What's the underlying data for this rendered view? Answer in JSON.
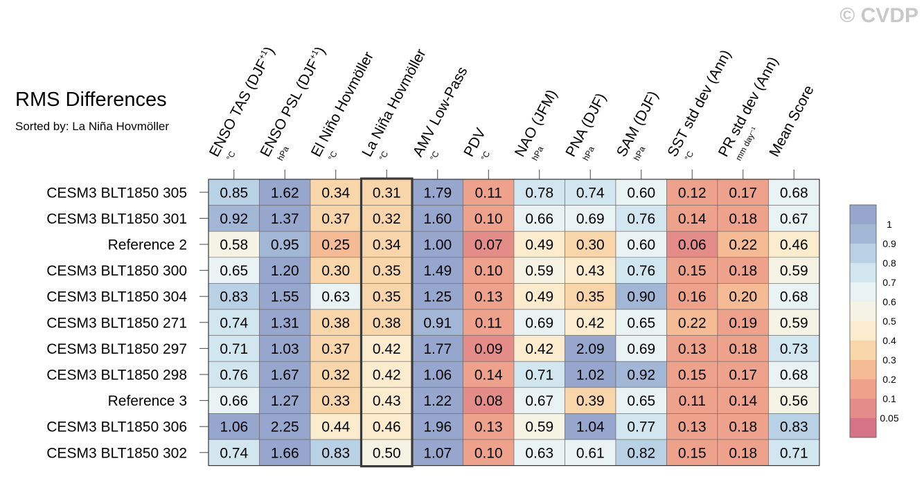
{
  "title": "RMS Differences",
  "subtitle": "Sorted by: La Niña Hovmöller",
  "watermark": "© CVDP",
  "chart_data": {
    "type": "heatmap",
    "title": "RMS Differences",
    "subtitle": "Sorted by: La Niña Hovmöller",
    "columns": [
      {
        "label": "ENSO TAS (DJF",
        "sup": "+1",
        "tail": ")",
        "unit": "°C"
      },
      {
        "label": "ENSO PSL (DJF",
        "sup": "+1",
        "tail": ")",
        "unit": "hPa"
      },
      {
        "label": "El Niño Hovmöller",
        "sup": "",
        "tail": "",
        "unit": "°C"
      },
      {
        "label": "La Niña Hovmöller",
        "sup": "",
        "tail": "",
        "unit": "°C"
      },
      {
        "label": "AMV Low-Pass",
        "sup": "",
        "tail": "",
        "unit": "°C"
      },
      {
        "label": "PDV",
        "sup": "",
        "tail": "",
        "unit": "°C"
      },
      {
        "label": "NAO (JFM)",
        "sup": "",
        "tail": "",
        "unit": "hPa"
      },
      {
        "label": "PNA (DJF)",
        "sup": "",
        "tail": "",
        "unit": "hPa"
      },
      {
        "label": "SAM (DJF)",
        "sup": "",
        "tail": "",
        "unit": "hPa"
      },
      {
        "label": "SST std dev (Ann)",
        "sup": "",
        "tail": "",
        "unit": "°C"
      },
      {
        "label": "PR std dev (Ann)",
        "sup": "",
        "tail": "",
        "unit": "mm day⁻¹"
      },
      {
        "label": "Mean Score",
        "sup": "",
        "tail": "",
        "unit": ""
      }
    ],
    "rows": [
      "CESM3 BLT1850 305",
      "CESM3 BLT1850 301",
      "Reference 2",
      "CESM3 BLT1850 300",
      "CESM3 BLT1850 304",
      "CESM3 BLT1850 271",
      "CESM3 BLT1850 297",
      "CESM3 BLT1850 298",
      "Reference 3",
      "CESM3 BLT1850 306",
      "CESM3 BLT1850 302"
    ],
    "values": [
      [
        "0.85",
        "1.62",
        "0.34",
        "0.31",
        "1.79",
        "0.11",
        "0.78",
        "0.74",
        "0.60",
        "0.12",
        "0.17",
        "0.68"
      ],
      [
        "0.92",
        "1.37",
        "0.37",
        "0.32",
        "1.60",
        "0.10",
        "0.66",
        "0.69",
        "0.76",
        "0.14",
        "0.18",
        "0.67"
      ],
      [
        "0.58",
        "0.95",
        "0.25",
        "0.34",
        "1.00",
        "0.07",
        "0.49",
        "0.30",
        "0.60",
        "0.06",
        "0.22",
        "0.46"
      ],
      [
        "0.65",
        "1.20",
        "0.30",
        "0.35",
        "1.49",
        "0.10",
        "0.59",
        "0.43",
        "0.76",
        "0.15",
        "0.18",
        "0.59"
      ],
      [
        "0.83",
        "1.55",
        "0.63",
        "0.35",
        "1.25",
        "0.13",
        "0.49",
        "0.35",
        "0.90",
        "0.16",
        "0.20",
        "0.68"
      ],
      [
        "0.74",
        "1.31",
        "0.38",
        "0.38",
        "0.91",
        "0.11",
        "0.69",
        "0.42",
        "0.65",
        "0.22",
        "0.19",
        "0.59"
      ],
      [
        "0.71",
        "1.03",
        "0.37",
        "0.42",
        "1.77",
        "0.09",
        "0.42",
        "2.09",
        "0.69",
        "0.13",
        "0.18",
        "0.73"
      ],
      [
        "0.76",
        "1.67",
        "0.32",
        "0.42",
        "1.06",
        "0.14",
        "0.71",
        "1.02",
        "0.92",
        "0.15",
        "0.17",
        "0.68"
      ],
      [
        "0.66",
        "1.27",
        "0.33",
        "0.43",
        "1.22",
        "0.08",
        "0.67",
        "0.39",
        "0.65",
        "0.11",
        "0.14",
        "0.56"
      ],
      [
        "1.06",
        "2.25",
        "0.44",
        "0.46",
        "1.96",
        "0.13",
        "0.59",
        "1.04",
        "0.77",
        "0.13",
        "0.18",
        "0.83"
      ],
      [
        "0.74",
        "1.66",
        "0.83",
        "0.50",
        "1.07",
        "0.10",
        "0.63",
        "0.61",
        "0.82",
        "0.15",
        "0.18",
        "0.71"
      ]
    ],
    "highlighted_column": "La Niña Hovmöller",
    "colorbar": {
      "labels": [
        "1",
        "0.9",
        "0.8",
        "0.7",
        "0.6",
        "0.5",
        "0.4",
        "0.3",
        "0.2",
        "0.1",
        "0.05"
      ],
      "colors": [
        "#96a6cd",
        "#a2b6d6",
        "#b9d1e5",
        "#d2e6ef",
        "#e9f3f4",
        "#f5f4e4",
        "#faeccc",
        "#f8d6aa",
        "#f4bb95",
        "#eea28c",
        "#e48c88",
        "#d67387"
      ]
    }
  }
}
